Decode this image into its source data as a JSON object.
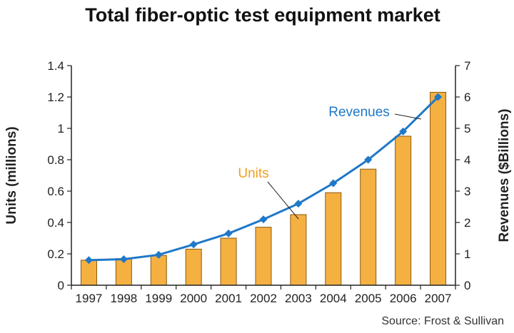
{
  "title": "Total fiber-optic test equipment market",
  "source": "Source: Frost & Sullivan",
  "chart_data": {
    "type": "bar",
    "categories": [
      "1997",
      "1998",
      "1999",
      "2000",
      "2001",
      "2002",
      "2003",
      "2004",
      "2005",
      "2006",
      "2007"
    ],
    "series": [
      {
        "name": "Units",
        "type": "bar",
        "axis": "left",
        "values": [
          0.16,
          0.17,
          0.19,
          0.23,
          0.3,
          0.37,
          0.45,
          0.59,
          0.74,
          0.95,
          1.23
        ]
      },
      {
        "name": "Revenues",
        "type": "line",
        "axis": "right",
        "values": [
          0.8,
          0.83,
          0.97,
          1.3,
          1.65,
          2.1,
          2.6,
          3.25,
          4.0,
          4.9,
          6.0
        ]
      }
    ],
    "title": "Total fiber-optic test equipment market",
    "ylabel": "Units (millions)",
    "y2label": "Revenues ($Billions)",
    "ylim": [
      0,
      1.4
    ],
    "y2lim": [
      0,
      7
    ],
    "yticks": [
      "0",
      "0.2",
      "0.4",
      "0.6",
      "0.8",
      "1",
      "1.2",
      "1.4"
    ],
    "y2ticks": [
      "0",
      "1",
      "2",
      "3",
      "4",
      "5",
      "6",
      "7"
    ],
    "grid": false,
    "legend": "none",
    "colors": {
      "bar_fill": "#f5b042",
      "bar_stroke": "#8a5a10",
      "line": "#1f78c8",
      "marker": "#1f78c8",
      "units_label": "#f0a020",
      "revenues_label": "#1f78c8"
    }
  }
}
